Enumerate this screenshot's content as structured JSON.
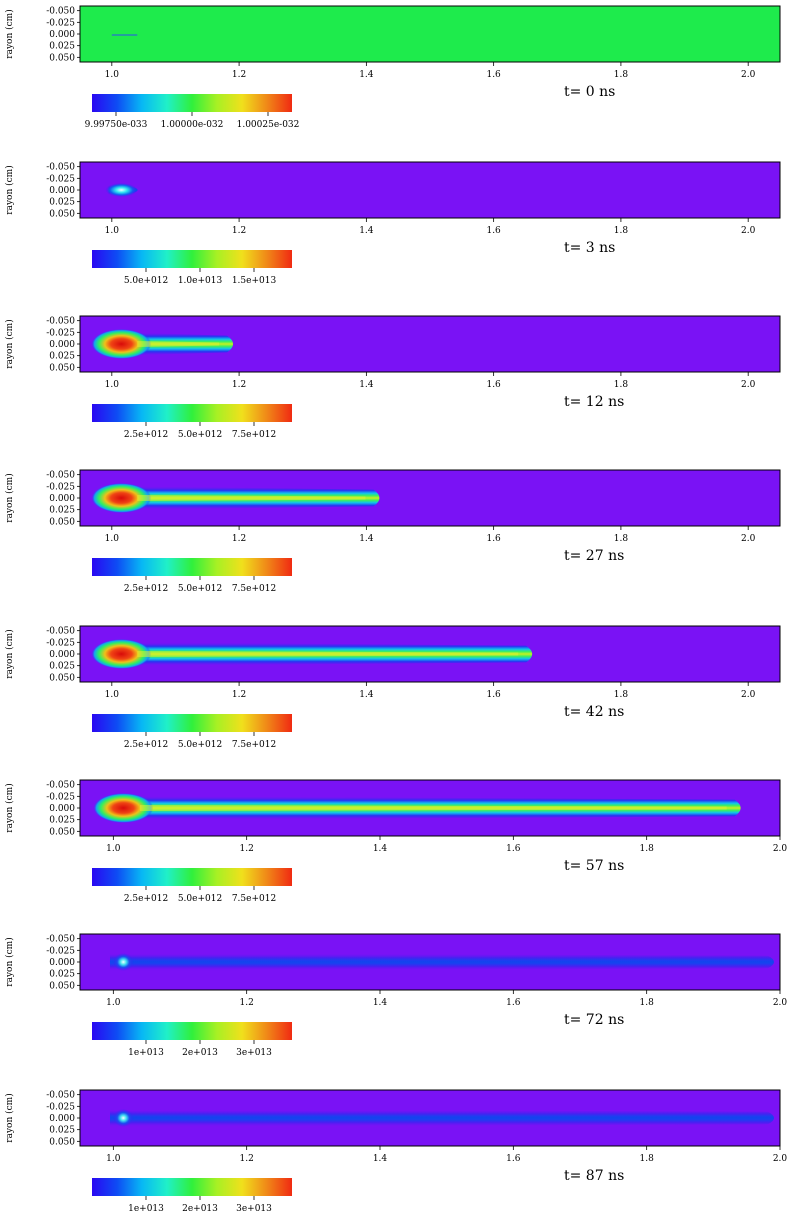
{
  "chart_data": [
    {
      "type": "heatmap",
      "time_label": "t= 0 ns",
      "ylabel": "rayon (cm)",
      "xlim": [
        0.95,
        2.05
      ],
      "ylim": [
        -0.06,
        0.06
      ],
      "x_ticks": [
        "1.0",
        "1.2",
        "1.4",
        "1.6",
        "1.8",
        "2.0"
      ],
      "y_ticks": [
        "-0.050",
        "-0.025",
        "0.000",
        "0.025",
        "0.050"
      ],
      "colorbar_ticks": [
        "9.99750e-033",
        "1.00000e-032",
        "1.00025e-032"
      ],
      "field": "uniform",
      "background_color": "#1EEB4C",
      "jet_length_end": 1.04
    },
    {
      "type": "heatmap",
      "time_label": "t= 3 ns",
      "ylabel": "rayon (cm)",
      "xlim": [
        0.95,
        2.05
      ],
      "ylim": [
        -0.06,
        0.06
      ],
      "x_ticks": [
        "1.0",
        "1.2",
        "1.4",
        "1.6",
        "1.8",
        "2.0"
      ],
      "y_ticks": [
        "-0.050",
        "-0.025",
        "0.000",
        "0.025",
        "0.050"
      ],
      "colorbar_ticks": [
        "5.0e+012",
        "1.0e+013",
        "1.5e+013"
      ],
      "field": "jet",
      "jet_tip_x": 1.05,
      "jet_core": "cyan"
    },
    {
      "type": "heatmap",
      "time_label": "t= 12 ns",
      "ylabel": "rayon (cm)",
      "xlim": [
        0.95,
        2.05
      ],
      "ylim": [
        -0.06,
        0.06
      ],
      "x_ticks": [
        "1.0",
        "1.2",
        "1.4",
        "1.6",
        "1.8",
        "2.0"
      ],
      "y_ticks": [
        "-0.050",
        "-0.025",
        "0.000",
        "0.025",
        "0.050"
      ],
      "colorbar_ticks": [
        "2.5e+012",
        "5.0e+012",
        "7.5e+012"
      ],
      "field": "jet",
      "jet_tip_x": 1.2,
      "jet_core": "red"
    },
    {
      "type": "heatmap",
      "time_label": "t= 27 ns",
      "ylabel": "rayon (cm)",
      "xlim": [
        0.95,
        2.05
      ],
      "ylim": [
        -0.06,
        0.06
      ],
      "x_ticks": [
        "1.0",
        "1.2",
        "1.4",
        "1.6",
        "1.8",
        "2.0"
      ],
      "y_ticks": [
        "-0.050",
        "-0.025",
        "0.000",
        "0.025",
        "0.050"
      ],
      "colorbar_ticks": [
        "2.5e+012",
        "5.0e+012",
        "7.5e+012"
      ],
      "field": "jet",
      "jet_tip_x": 1.43,
      "jet_core": "red"
    },
    {
      "type": "heatmap",
      "time_label": "t= 42 ns",
      "ylabel": "rayon (cm)",
      "xlim": [
        0.95,
        2.05
      ],
      "ylim": [
        -0.06,
        0.06
      ],
      "x_ticks": [
        "1.0",
        "1.2",
        "1.4",
        "1.6",
        "1.8",
        "2.0"
      ],
      "y_ticks": [
        "-0.050",
        "-0.025",
        "0.000",
        "0.025",
        "0.050"
      ],
      "colorbar_ticks": [
        "2.5e+012",
        "5.0e+012",
        "7.5e+012"
      ],
      "field": "jet",
      "jet_tip_x": 1.67,
      "jet_core": "red"
    },
    {
      "type": "heatmap",
      "time_label": "t= 57 ns",
      "ylabel": "rayon (cm)",
      "xlim": [
        0.95,
        2.0
      ],
      "ylim": [
        -0.06,
        0.06
      ],
      "x_ticks": [
        "1.0",
        "1.2",
        "1.4",
        "1.6",
        "1.8",
        "2.0"
      ],
      "y_ticks": [
        "-0.050",
        "-0.025",
        "0.000",
        "0.025",
        "0.050"
      ],
      "colorbar_ticks": [
        "2.5e+012",
        "5.0e+012",
        "7.5e+012"
      ],
      "field": "jet",
      "jet_tip_x": 1.95,
      "jet_core": "red"
    },
    {
      "type": "heatmap",
      "time_label": "t= 72 ns",
      "ylabel": "rayon (cm)",
      "xlim": [
        0.95,
        2.0
      ],
      "ylim": [
        -0.06,
        0.06
      ],
      "x_ticks": [
        "1.0",
        "1.2",
        "1.4",
        "1.6",
        "1.8",
        "2.0"
      ],
      "y_ticks": [
        "-0.050",
        "-0.025",
        "0.000",
        "0.025",
        "0.050"
      ],
      "colorbar_ticks": [
        "1e+013",
        "2e+013",
        "3e+013"
      ],
      "field": "jet",
      "jet_tip_x": 2.0,
      "jet_core": "blue"
    },
    {
      "type": "heatmap",
      "time_label": "t= 87 ns",
      "ylabel": "rayon (cm)",
      "xlim": [
        0.95,
        2.0
      ],
      "ylim": [
        -0.06,
        0.06
      ],
      "x_ticks": [
        "1.0",
        "1.2",
        "1.4",
        "1.6",
        "1.8",
        "2.0"
      ],
      "y_ticks": [
        "-0.050",
        "-0.025",
        "0.000",
        "0.025",
        "0.050"
      ],
      "colorbar_ticks": [
        "1e+013",
        "2e+013",
        "3e+013"
      ],
      "field": "jet",
      "jet_tip_x": 2.0,
      "jet_core": "blue"
    }
  ],
  "colors": {
    "background": "#7A12F5",
    "jet_scale": [
      "#3A0CF0",
      "#1A3CF2",
      "#0AA8F4",
      "#19F0E6",
      "#24F07A",
      "#7CF028",
      "#E6F01C",
      "#F0A418",
      "#F04414",
      "#D80A0A"
    ]
  }
}
